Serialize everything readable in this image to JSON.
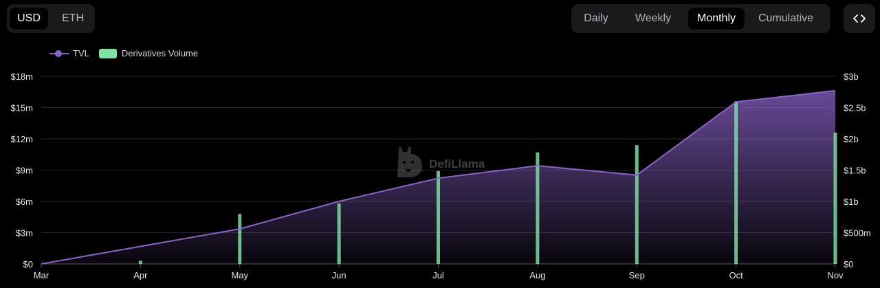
{
  "currency_toggle": {
    "options": [
      "USD",
      "ETH"
    ],
    "selected": "USD"
  },
  "period_toggle": {
    "options": [
      "Daily",
      "Weekly",
      "Monthly",
      "Cumulative"
    ],
    "selected": "Monthly"
  },
  "embed_icon": "code-brackets-icon",
  "watermark": {
    "text": "DefiLlama",
    "icon": "llama-logo"
  },
  "colors": {
    "tvl": "#8b63c9",
    "volume": "#7fe3a6",
    "background": "#000000",
    "grid": "#27272b"
  },
  "chart_data": {
    "type": "bar+line",
    "title": "",
    "x_labels": [
      "Mar",
      "Apr",
      "May",
      "Jun",
      "Jul",
      "Aug",
      "Sep",
      "Oct",
      "Nov"
    ],
    "legend": {
      "position": "top-left",
      "entries": [
        "TVL",
        "Derivatives Volume"
      ]
    },
    "grid": true,
    "left_axis": {
      "series": "Derivatives Volume",
      "ylim": [
        0,
        18000000
      ],
      "tick_values": [
        0,
        3000000,
        6000000,
        9000000,
        12000000,
        15000000,
        18000000
      ],
      "tick_labels": [
        "$0",
        "$3m",
        "$6m",
        "$9m",
        "$12m",
        "$15m",
        "$18m"
      ]
    },
    "right_axis": {
      "series": "TVL",
      "ylim": [
        0,
        3000000000
      ],
      "tick_values": [
        0,
        500000000,
        1000000000,
        1500000000,
        2000000000,
        2500000000,
        3000000000
      ],
      "tick_labels": [
        "$0",
        "$500m",
        "$1b",
        "$1.5b",
        "$2b",
        "$2.5b",
        "$3b"
      ]
    },
    "series": [
      {
        "name": "Derivatives Volume",
        "kind": "bar",
        "axis": "left",
        "values": [
          0,
          300000,
          4800000,
          5800000,
          8900000,
          10700000,
          11400000,
          15600000,
          12600000
        ]
      },
      {
        "name": "TVL",
        "kind": "area-line",
        "axis": "right",
        "values": [
          0,
          280000000,
          560000000,
          1000000000,
          1370000000,
          1570000000,
          1420000000,
          2590000000,
          2770000000
        ]
      }
    ]
  }
}
